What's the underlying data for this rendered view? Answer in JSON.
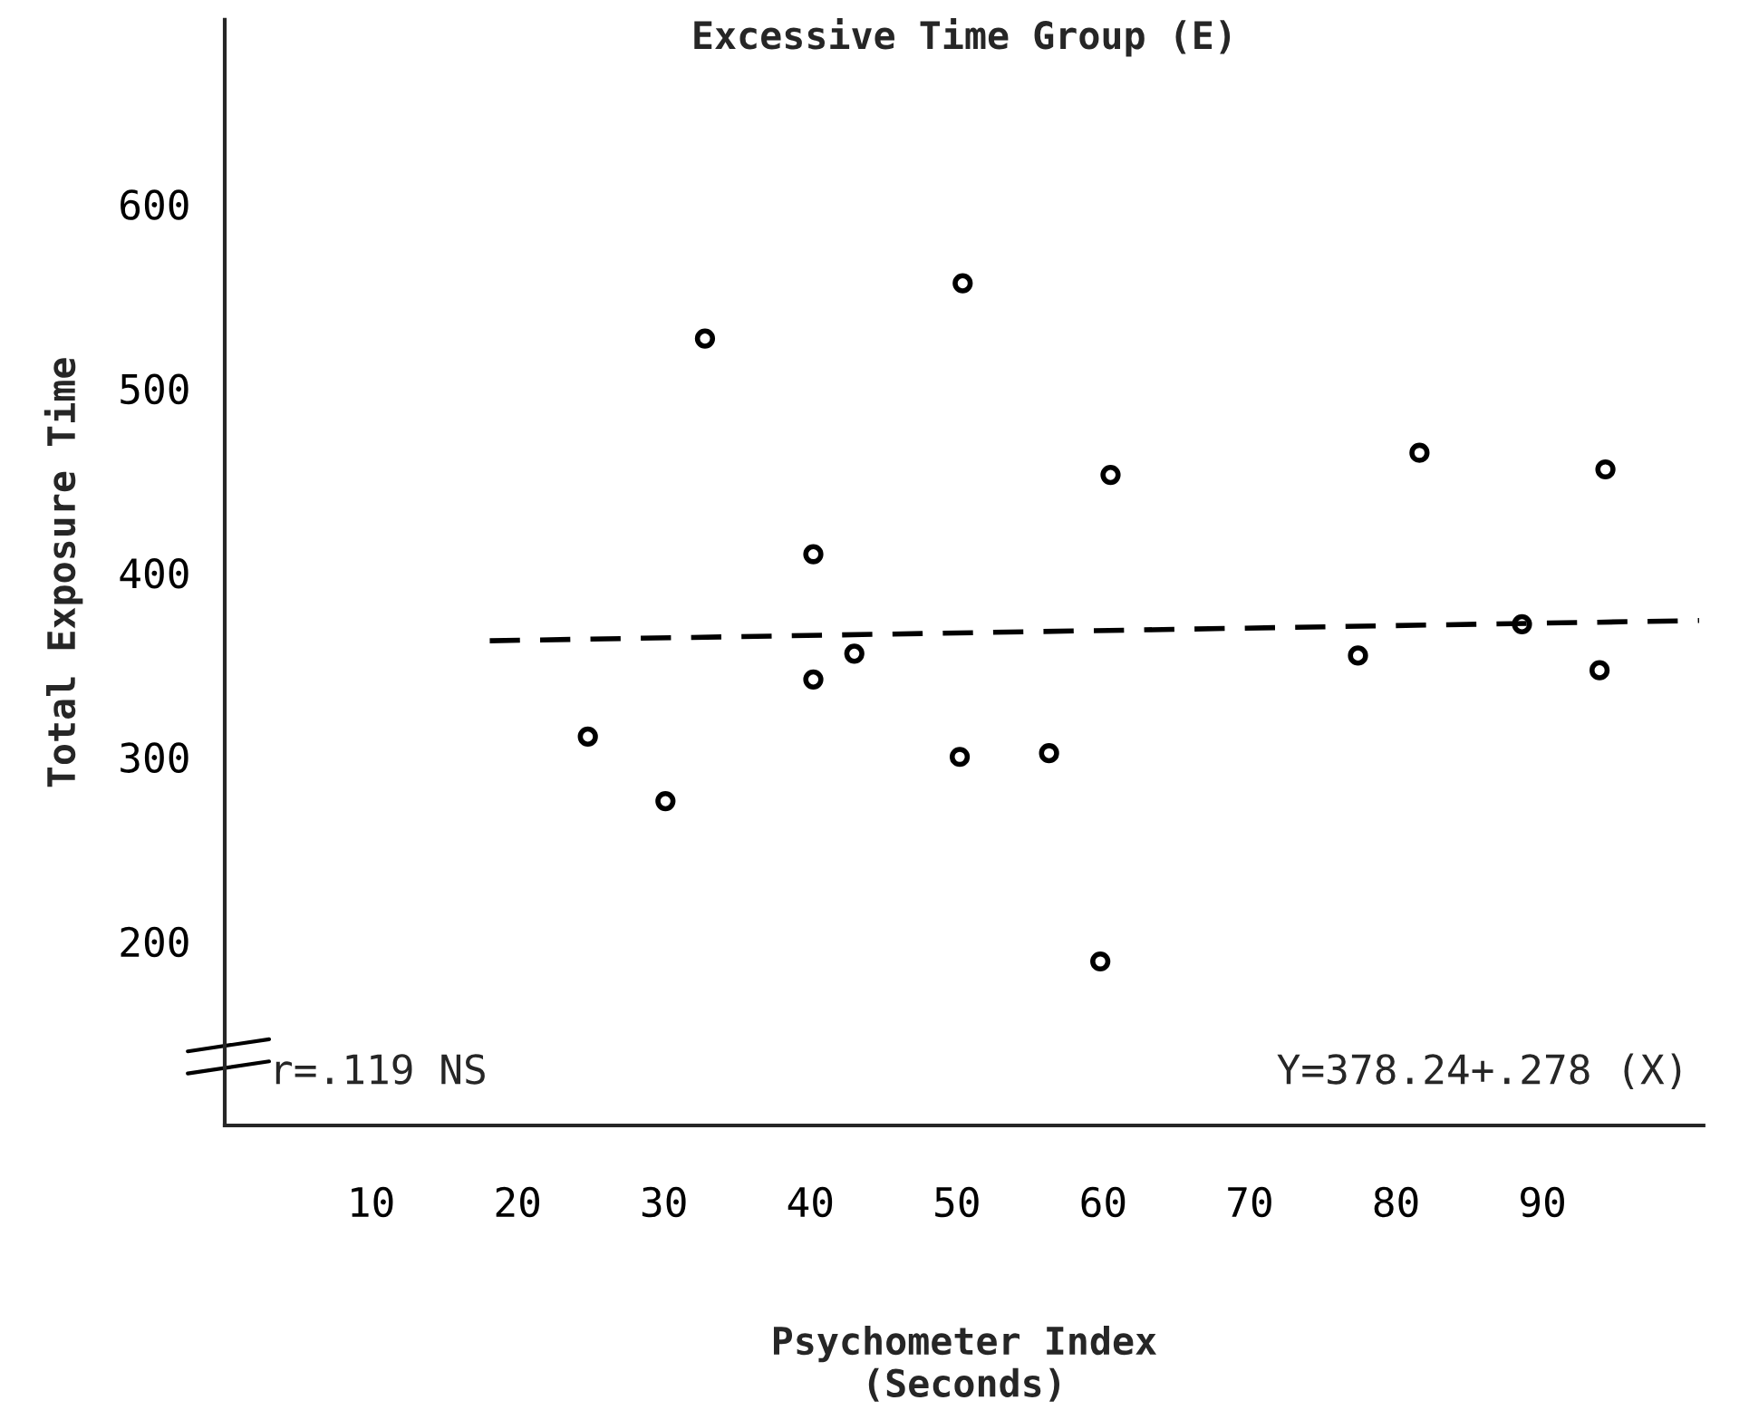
{
  "chart_data": {
    "type": "scatter",
    "title": "Excessive Time Group (E)",
    "xlabel": "Psychometer Index\n(Seconds)",
    "ylabel": "Total Exposure Time",
    "annotations": [
      "r=.119 NS",
      "Y=378.24+.278 (X)"
    ],
    "xlim": [
      0,
      101
    ],
    "xticks": [
      10,
      20,
      30,
      40,
      50,
      60,
      70,
      80,
      90
    ],
    "ylim": [
      100,
      700
    ],
    "yticks": [
      200,
      300,
      400,
      500,
      600
    ],
    "marker": "circle",
    "grid": false,
    "legend": false,
    "series": [
      {
        "color": "#000000",
        "x": [
          24.8,
          30.1,
          32.8,
          40.2,
          40.2,
          43.0,
          50.4,
          50.2,
          56.3,
          59.8,
          60.5,
          77.4,
          81.6,
          88.6,
          94.3,
          93.9
        ],
        "values": [
          311,
          276,
          527,
          410,
          342,
          356,
          557,
          300,
          302,
          189,
          453,
          355,
          465,
          372,
          456,
          347
        ]
      },
      {
        "type": "line",
        "color": "#000000",
        "line_style": "dashed",
        "marker": "none",
        "x": [
          18.1,
          100.7
        ],
        "values": [
          363,
          374
        ]
      }
    ]
  }
}
